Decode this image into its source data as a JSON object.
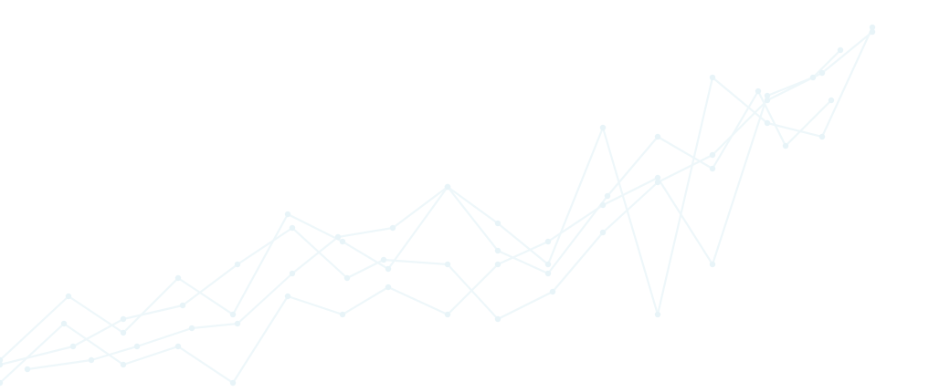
{
  "decoration": {
    "kind": "faint line network background",
    "line_color": "#eef7fa",
    "node_color": "#e8f4f8",
    "background_color": "#ffffff"
  }
}
